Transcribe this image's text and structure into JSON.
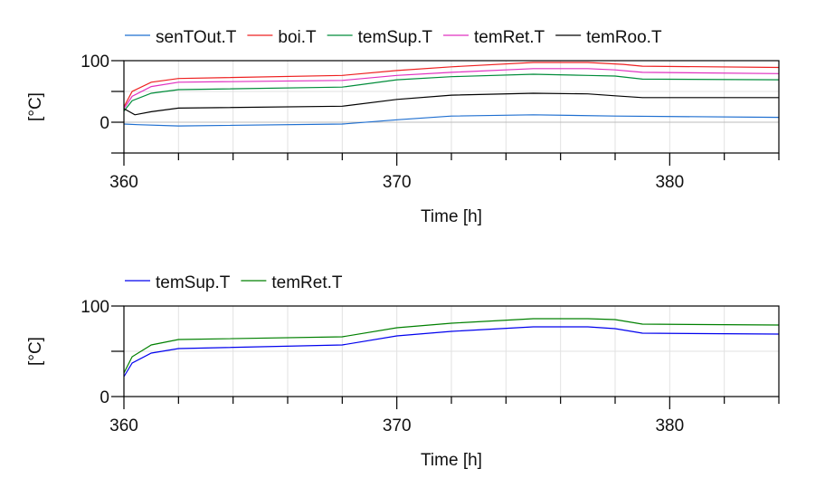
{
  "chart_data": [
    {
      "type": "line",
      "xlabel": "Time [h]",
      "ylabel": "[°C]",
      "xlim": [
        360,
        384
      ],
      "ylim": [
        -50,
        100
      ],
      "xticks": [
        360,
        370,
        380
      ],
      "yticks": [
        0,
        100
      ],
      "grid": true,
      "legend": "top-left",
      "series": [
        {
          "name": "senTOut.T",
          "color": "#1f6fd0",
          "x": [
            360,
            360.5,
            362,
            368,
            370,
            372,
            375,
            378,
            384
          ],
          "y": [
            -3,
            -4,
            -6,
            -3,
            4,
            10,
            12,
            10,
            8
          ]
        },
        {
          "name": "boi.T",
          "color": "#ee2020",
          "x": [
            360,
            360.3,
            361,
            362,
            368,
            370,
            372,
            375,
            377,
            378.3,
            379,
            384
          ],
          "y": [
            25,
            50,
            65,
            71,
            76,
            84,
            90,
            97,
            97,
            94,
            91,
            89
          ]
        },
        {
          "name": "temSup.T",
          "color": "#008c3a",
          "x": [
            360,
            360.3,
            361,
            362,
            368,
            370,
            372,
            375,
            377,
            378,
            379,
            384
          ],
          "y": [
            18,
            35,
            47,
            53,
            57,
            69,
            74,
            78,
            76,
            75,
            70,
            69
          ]
        },
        {
          "name": "temRet.T",
          "color": "#e030c0",
          "x": [
            360,
            360.3,
            361,
            362,
            368,
            370,
            372,
            375,
            377,
            378,
            379,
            384
          ],
          "y": [
            22,
            42,
            58,
            65,
            68,
            76,
            81,
            87,
            87,
            85,
            81,
            79
          ]
        },
        {
          "name": "temRoo.T",
          "color": "#000000",
          "x": [
            360,
            360.4,
            361,
            362,
            368,
            370,
            372,
            375,
            377,
            378,
            379,
            384
          ],
          "y": [
            22,
            12,
            17,
            23,
            26,
            37,
            44,
            47,
            46,
            43,
            40,
            40
          ]
        }
      ]
    },
    {
      "type": "line",
      "xlabel": "Time [h]",
      "ylabel": "[°C]",
      "xlim": [
        360,
        384
      ],
      "ylim": [
        0,
        100
      ],
      "xticks": [
        360,
        370,
        380
      ],
      "yticks": [
        0,
        100
      ],
      "grid": true,
      "legend": "top-left",
      "series": [
        {
          "name": "temSup.T",
          "color": "#0000ee",
          "x": [
            360,
            360.3,
            361,
            362,
            368,
            370,
            372,
            375,
            377,
            378,
            379,
            384
          ],
          "y": [
            22,
            37,
            48,
            53,
            57,
            67,
            72,
            77,
            77,
            75,
            70,
            69
          ]
        },
        {
          "name": "temRet.T",
          "color": "#008000",
          "x": [
            360,
            360.3,
            361,
            362,
            368,
            370,
            372,
            375,
            377,
            378,
            379,
            384
          ],
          "y": [
            26,
            44,
            57,
            63,
            66,
            76,
            81,
            86,
            86,
            85,
            80,
            79
          ]
        }
      ]
    }
  ]
}
